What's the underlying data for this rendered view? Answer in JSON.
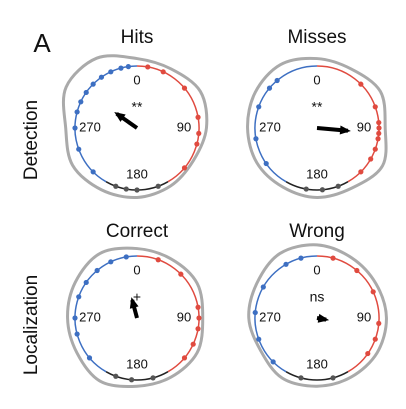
{
  "panel_label": "A",
  "row_labels": [
    "Detection",
    "Localization"
  ],
  "chart_data": [
    {
      "type": "polar",
      "title": "Hits",
      "annotation": "**",
      "angle_ticks": [
        0,
        90,
        180,
        270
      ],
      "mean_angle": 305,
      "mean_length": 0.4,
      "density_angles": [
        0,
        30,
        60,
        90,
        120,
        150,
        180,
        210,
        240,
        270,
        300,
        330
      ],
      "density": [
        1.12,
        1.1,
        1.18,
        1.12,
        1.05,
        1.08,
        1.12,
        1.15,
        1.2,
        1.15,
        1.32,
        1.3
      ],
      "series": [
        {
          "color": "#e04a3f",
          "values": [
            10,
            25,
            50,
            80,
            95,
            105,
            130
          ]
        },
        {
          "color": "#555555",
          "values": [
            160,
            180,
            190,
            200
          ]
        },
        {
          "color": "#3d6fc2",
          "values": [
            225,
            250,
            270,
            285,
            295,
            305,
            315,
            325,
            335,
            345,
            352
          ]
        }
      ]
    },
    {
      "type": "polar",
      "title": "Misses",
      "annotation": "**",
      "angle_ticks": [
        0,
        90,
        180,
        270
      ],
      "mean_angle": 95,
      "mean_length": 0.5,
      "density_angles": [
        0,
        30,
        60,
        90,
        120,
        150,
        180,
        210,
        240,
        270,
        300,
        330
      ],
      "density": [
        1.12,
        1.1,
        1.18,
        1.1,
        1.22,
        1.12,
        1.12,
        1.1,
        1.12,
        1.12,
        1.15,
        1.18
      ],
      "series": [
        {
          "color": "#e04a3f",
          "values": [
            45,
            70,
            85,
            90,
            95,
            100,
            110,
            120,
            135
          ]
        },
        {
          "color": "#555555",
          "values": [
            160,
            175,
            190
          ]
        },
        {
          "color": "#3d6fc2",
          "values": [
            235,
            260,
            290,
            310,
            320
          ]
        }
      ]
    },
    {
      "type": "polar",
      "title": "Correct",
      "annotation": "+",
      "angle_ticks": [
        0,
        90,
        180,
        270
      ],
      "mean_angle": 345,
      "mean_length": 0.3,
      "density_angles": [
        0,
        30,
        60,
        90,
        120,
        150,
        180,
        210,
        240,
        270,
        300,
        330
      ],
      "density": [
        1.12,
        1.1,
        1.12,
        1.06,
        1.12,
        1.1,
        1.1,
        1.18,
        1.12,
        1.12,
        1.15,
        1.2
      ],
      "series": [
        {
          "color": "#e04a3f",
          "values": [
            20,
            45,
            80,
            90,
            100,
            115,
            130
          ]
        },
        {
          "color": "#555555",
          "values": [
            165,
            185,
            200
          ]
        },
        {
          "color": "#3d6fc2",
          "values": [
            230,
            255,
            270,
            290,
            305,
            320,
            335,
            350
          ]
        }
      ]
    },
    {
      "type": "polar",
      "title": "Wrong",
      "annotation": "ns",
      "angle_ticks": [
        0,
        90,
        180,
        270
      ],
      "mean_angle": 100,
      "mean_length": 0.15,
      "density_angles": [
        0,
        30,
        60,
        90,
        120,
        150,
        180,
        210,
        240,
        270,
        300,
        330
      ],
      "density": [
        1.18,
        1.12,
        1.1,
        1.12,
        1.12,
        1.1,
        1.1,
        1.12,
        1.05,
        1.1,
        1.12,
        1.2
      ],
      "series": [
        {
          "color": "#e04a3f",
          "values": [
            15,
            40,
            65,
            95,
            110,
            125
          ]
        },
        {
          "color": "#555555",
          "values": [
            165,
            195
          ]
        },
        {
          "color": "#3d6fc2",
          "values": [
            225,
            250,
            275,
            300,
            330,
            345
          ]
        }
      ]
    }
  ]
}
